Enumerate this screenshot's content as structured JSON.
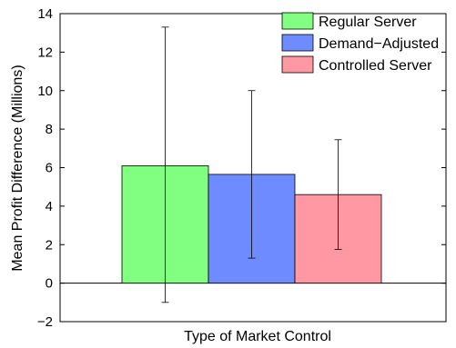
{
  "chart_data": {
    "type": "bar",
    "xlabel": "Type of Market Control",
    "ylabel": "Mean Profit Difference (Millions)",
    "ylim": [
      -2,
      14
    ],
    "yticks": [
      -2,
      0,
      2,
      4,
      6,
      8,
      10,
      12,
      14
    ],
    "ytick_labels": [
      "−2",
      "0",
      "2",
      "4",
      "6",
      "8",
      "10",
      "12",
      "14"
    ],
    "grid": false,
    "legend_position": "top-right",
    "series": [
      {
        "name": "Regular Server",
        "value": 6.1,
        "err_low": -1.0,
        "err_high": 13.3,
        "color": "#80ff80"
      },
      {
        "name": "Demand−Adjusted",
        "value": 5.65,
        "err_low": 1.3,
        "err_high": 10.0,
        "color": "#6e8cff"
      },
      {
        "name": "Controlled Server",
        "value": 4.6,
        "err_low": 1.75,
        "err_high": 7.45,
        "color": "#ff98a3"
      }
    ]
  }
}
